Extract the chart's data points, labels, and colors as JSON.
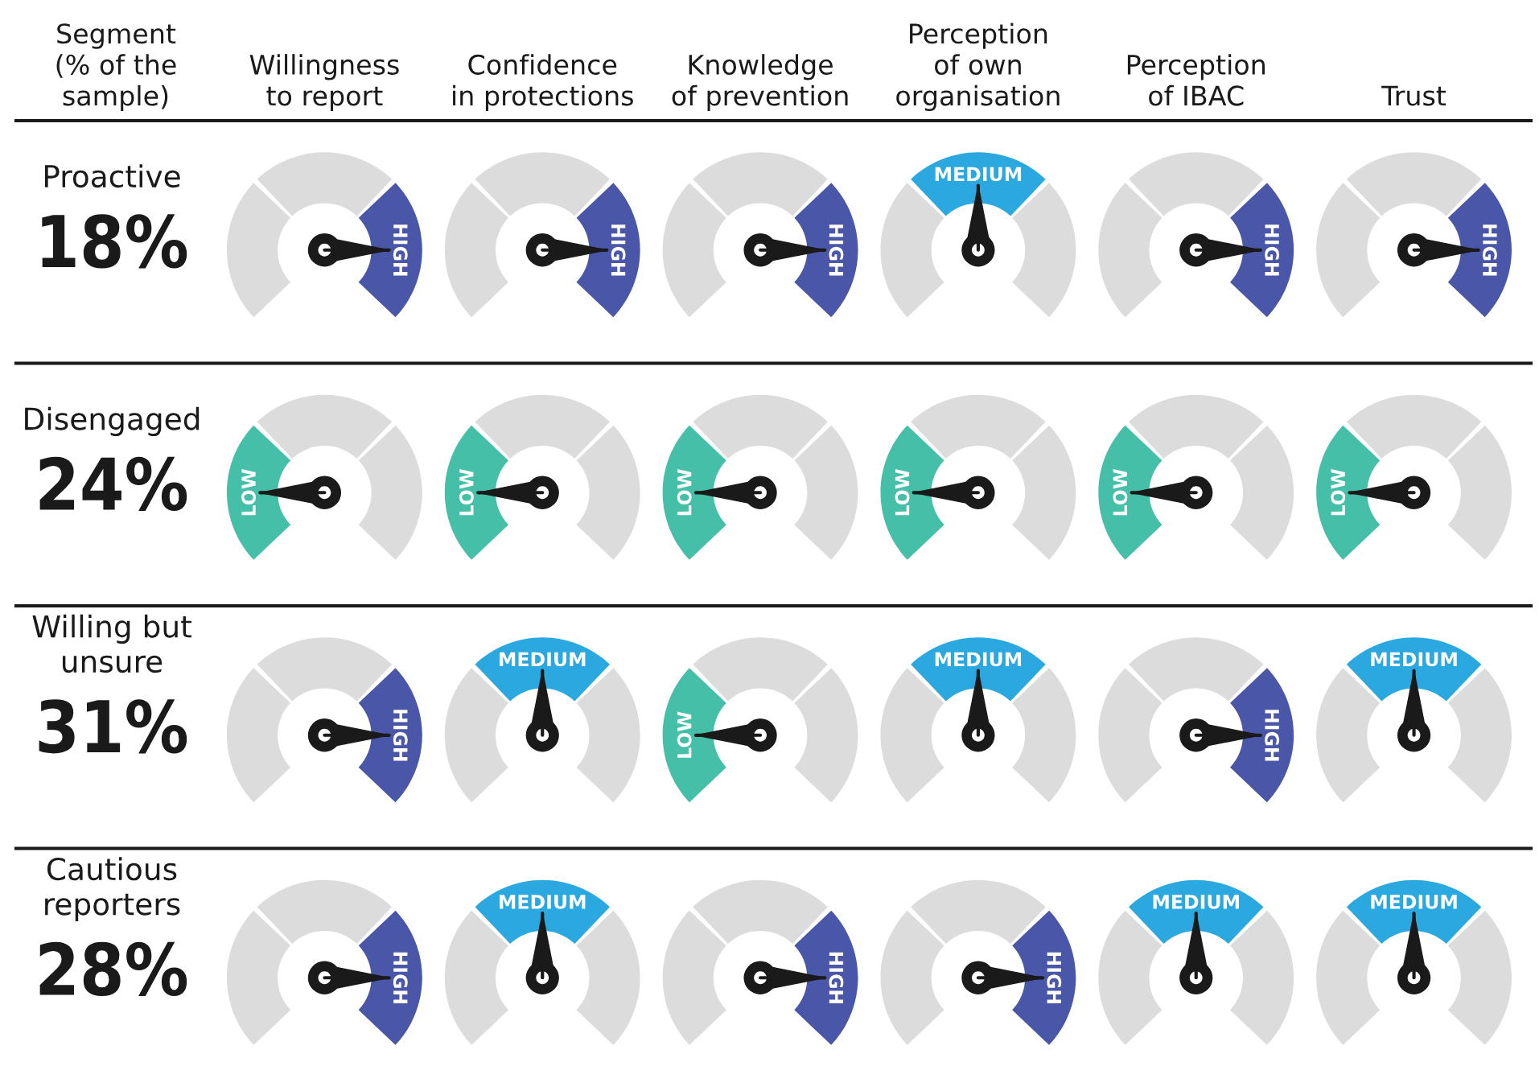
{
  "chart_data": [
    {
      "type": "other",
      "annotations": [
        "Segment\n(% of the\nsample)",
        "Willingness\nto report",
        "Confidence\nin protections",
        "Knowledge\nof prevention",
        "Perception\nof own\norganisation",
        "Perception\nof IBAC",
        "Trust"
      ]
    },
    {
      "type": "other",
      "title": "Proactive",
      "annotations": [
        "18%"
      ]
    },
    {
      "type": "donut",
      "categories": [
        null,
        null,
        "HIGH"
      ],
      "values": [
        33.3,
        33.4,
        33.3
      ],
      "colors": [
        "#dcdcdd",
        "#dcdcdd",
        "#4a57a8"
      ],
      "needle": "HIGH"
    },
    {
      "type": "donut",
      "categories": [
        null,
        null,
        "HIGH"
      ],
      "values": [
        33.3,
        33.4,
        33.3
      ],
      "colors": [
        "#dcdcdd",
        "#dcdcdd",
        "#4a57a8"
      ],
      "needle": "HIGH"
    },
    {
      "type": "donut",
      "categories": [
        null,
        null,
        "HIGH"
      ],
      "values": [
        33.3,
        33.4,
        33.3
      ],
      "colors": [
        "#dcdcdd",
        "#dcdcdd",
        "#4a57a8"
      ],
      "needle": "HIGH"
    },
    {
      "type": "donut",
      "categories": [
        null,
        "MEDIUM",
        null
      ],
      "values": [
        33.3,
        33.4,
        33.3
      ],
      "colors": [
        "#dcdcdd",
        "#2aa8df",
        "#dcdcdd"
      ],
      "needle": "MEDIUM"
    },
    {
      "type": "donut",
      "categories": [
        null,
        null,
        "HIGH"
      ],
      "values": [
        33.3,
        33.4,
        33.3
      ],
      "colors": [
        "#dcdcdd",
        "#dcdcdd",
        "#4a57a8"
      ],
      "needle": "HIGH"
    },
    {
      "type": "donut",
      "categories": [
        null,
        null,
        "HIGH"
      ],
      "values": [
        33.3,
        33.4,
        33.3
      ],
      "colors": [
        "#dcdcdd",
        "#dcdcdd",
        "#4a57a8"
      ],
      "needle": "HIGH"
    },
    {
      "type": "other",
      "title": "Disengaged",
      "annotations": [
        "24%"
      ]
    },
    {
      "type": "donut",
      "categories": [
        "LOW",
        null,
        null
      ],
      "values": [
        33.3,
        33.4,
        33.3
      ],
      "colors": [
        "#45bfa8",
        "#dcdcdd",
        "#dcdcdd"
      ],
      "needle": "LOW"
    },
    {
      "type": "donut",
      "categories": [
        "LOW",
        null,
        null
      ],
      "values": [
        33.3,
        33.4,
        33.3
      ],
      "colors": [
        "#45bfa8",
        "#dcdcdd",
        "#dcdcdd"
      ],
      "needle": "LOW"
    },
    {
      "type": "donut",
      "categories": [
        "LOW",
        null,
        null
      ],
      "values": [
        33.3,
        33.4,
        33.3
      ],
      "colors": [
        "#45bfa8",
        "#dcdcdd",
        "#dcdcdd"
      ],
      "needle": "LOW"
    },
    {
      "type": "donut",
      "categories": [
        "LOW",
        null,
        null
      ],
      "values": [
        33.3,
        33.4,
        33.3
      ],
      "colors": [
        "#45bfa8",
        "#dcdcdd",
        "#dcdcdd"
      ],
      "needle": "LOW"
    },
    {
      "type": "donut",
      "categories": [
        "LOW",
        null,
        null
      ],
      "values": [
        33.3,
        33.4,
        33.3
      ],
      "colors": [
        "#45bfa8",
        "#dcdcdd",
        "#dcdcdd"
      ],
      "needle": "LOW"
    },
    {
      "type": "donut",
      "categories": [
        "LOW",
        null,
        null
      ],
      "values": [
        33.3,
        33.4,
        33.3
      ],
      "colors": [
        "#45bfa8",
        "#dcdcdd",
        "#dcdcdd"
      ],
      "needle": "LOW"
    },
    {
      "type": "other",
      "title": "Willing but\nunsure",
      "annotations": [
        "31%"
      ]
    },
    {
      "type": "donut",
      "categories": [
        null,
        null,
        "HIGH"
      ],
      "values": [
        33.3,
        33.4,
        33.3
      ],
      "colors": [
        "#dcdcdd",
        "#dcdcdd",
        "#4a57a8"
      ],
      "needle": "HIGH"
    },
    {
      "type": "donut",
      "categories": [
        null,
        "MEDIUM",
        null
      ],
      "values": [
        33.3,
        33.4,
        33.3
      ],
      "colors": [
        "#dcdcdd",
        "#2aa8df",
        "#dcdcdd"
      ],
      "needle": "MEDIUM"
    },
    {
      "type": "donut",
      "categories": [
        "LOW",
        null,
        null
      ],
      "values": [
        33.3,
        33.4,
        33.3
      ],
      "colors": [
        "#45bfa8",
        "#dcdcdd",
        "#dcdcdd"
      ],
      "needle": "LOW"
    },
    {
      "type": "donut",
      "categories": [
        null,
        "MEDIUM",
        null
      ],
      "values": [
        33.3,
        33.4,
        33.3
      ],
      "colors": [
        "#dcdcdd",
        "#2aa8df",
        "#dcdcdd"
      ],
      "needle": "MEDIUM"
    },
    {
      "type": "donut",
      "categories": [
        null,
        null,
        "HIGH"
      ],
      "values": [
        33.3,
        33.4,
        33.3
      ],
      "colors": [
        "#dcdcdd",
        "#dcdcdd",
        "#4a57a8"
      ],
      "needle": "HIGH"
    },
    {
      "type": "donut",
      "categories": [
        null,
        "MEDIUM",
        null
      ],
      "values": [
        33.3,
        33.4,
        33.3
      ],
      "colors": [
        "#dcdcdd",
        "#2aa8df",
        "#dcdcdd"
      ],
      "needle": "MEDIUM"
    },
    {
      "type": "other",
      "title": "Cautious\nreporters",
      "annotations": [
        "28%"
      ]
    },
    {
      "type": "donut",
      "categories": [
        null,
        null,
        "HIGH"
      ],
      "values": [
        33.3,
        33.4,
        33.3
      ],
      "colors": [
        "#dcdcdd",
        "#dcdcdd",
        "#4a57a8"
      ],
      "needle": "HIGH"
    },
    {
      "type": "donut",
      "categories": [
        null,
        "MEDIUM",
        null
      ],
      "values": [
        33.3,
        33.4,
        33.3
      ],
      "colors": [
        "#dcdcdd",
        "#2aa8df",
        "#dcdcdd"
      ],
      "needle": "MEDIUM"
    },
    {
      "type": "donut",
      "categories": [
        null,
        null,
        "HIGH"
      ],
      "values": [
        33.3,
        33.4,
        33.3
      ],
      "colors": [
        "#dcdcdd",
        "#dcdcdd",
        "#4a57a8"
      ],
      "needle": "HIGH"
    },
    {
      "type": "donut",
      "categories": [
        null,
        null,
        "HIGH"
      ],
      "values": [
        33.3,
        33.4,
        33.3
      ],
      "colors": [
        "#dcdcdd",
        "#dcdcdd",
        "#4a57a8"
      ],
      "needle": "HIGH"
    },
    {
      "type": "donut",
      "categories": [
        null,
        "MEDIUM",
        null
      ],
      "values": [
        33.3,
        33.4,
        33.3
      ],
      "colors": [
        "#dcdcdd",
        "#2aa8df",
        "#dcdcdd"
      ],
      "needle": "MEDIUM"
    },
    {
      "type": "donut",
      "categories": [
        null,
        "MEDIUM",
        null
      ],
      "values": [
        33.3,
        33.4,
        33.3
      ],
      "colors": [
        "#dcdcdd",
        "#2aa8df",
        "#dcdcdd"
      ],
      "needle": "MEDIUM"
    }
  ]
}
